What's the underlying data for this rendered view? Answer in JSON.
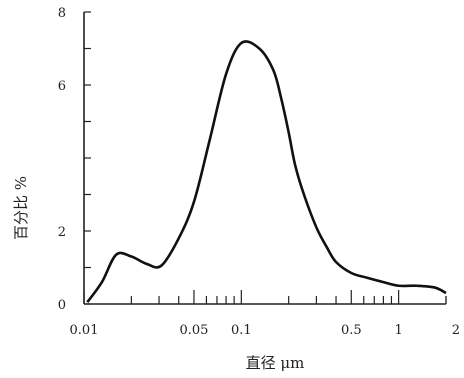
{
  "chart_data": {
    "type": "line",
    "title": "",
    "xlabel": "直径 μm",
    "ylabel": "百分比 %",
    "x_scale": "log",
    "xlim": [
      0.01,
      2
    ],
    "ylim": [
      0,
      8
    ],
    "grid": false,
    "x_tick_labels": [
      {
        "x": 0.01,
        "label": "0.01"
      },
      {
        "x": 0.05,
        "label": "0.05"
      },
      {
        "x": 0.1,
        "label": "0.1"
      },
      {
        "x": 0.5,
        "label": "0.5"
      },
      {
        "x": 1,
        "label": "1"
      },
      {
        "x": 2,
        "label": "2"
      }
    ],
    "y_tick_labels": [
      {
        "y": 0,
        "label": "0"
      },
      {
        "y": 2,
        "label": "2"
      },
      {
        "y": 6,
        "label": "6"
      },
      {
        "y": 8,
        "label": "8"
      }
    ],
    "series": [
      {
        "x": [
          0.0105,
          0.013,
          0.016,
          0.02,
          0.025,
          0.031,
          0.04,
          0.05,
          0.063,
          0.08,
          0.1,
          0.13,
          0.16,
          0.18,
          0.2,
          0.22,
          0.25,
          0.3,
          0.35,
          0.4,
          0.5,
          0.63,
          0.8,
          1.0,
          1.3,
          1.7,
          2.0
        ],
        "y": [
          0.05,
          0.6,
          1.35,
          1.3,
          1.1,
          1.05,
          1.8,
          2.8,
          4.5,
          6.3,
          7.15,
          7.0,
          6.4,
          5.6,
          4.7,
          3.8,
          3.0,
          2.1,
          1.55,
          1.15,
          0.85,
          0.72,
          0.6,
          0.5,
          0.5,
          0.45,
          0.3
        ]
      }
    ]
  }
}
